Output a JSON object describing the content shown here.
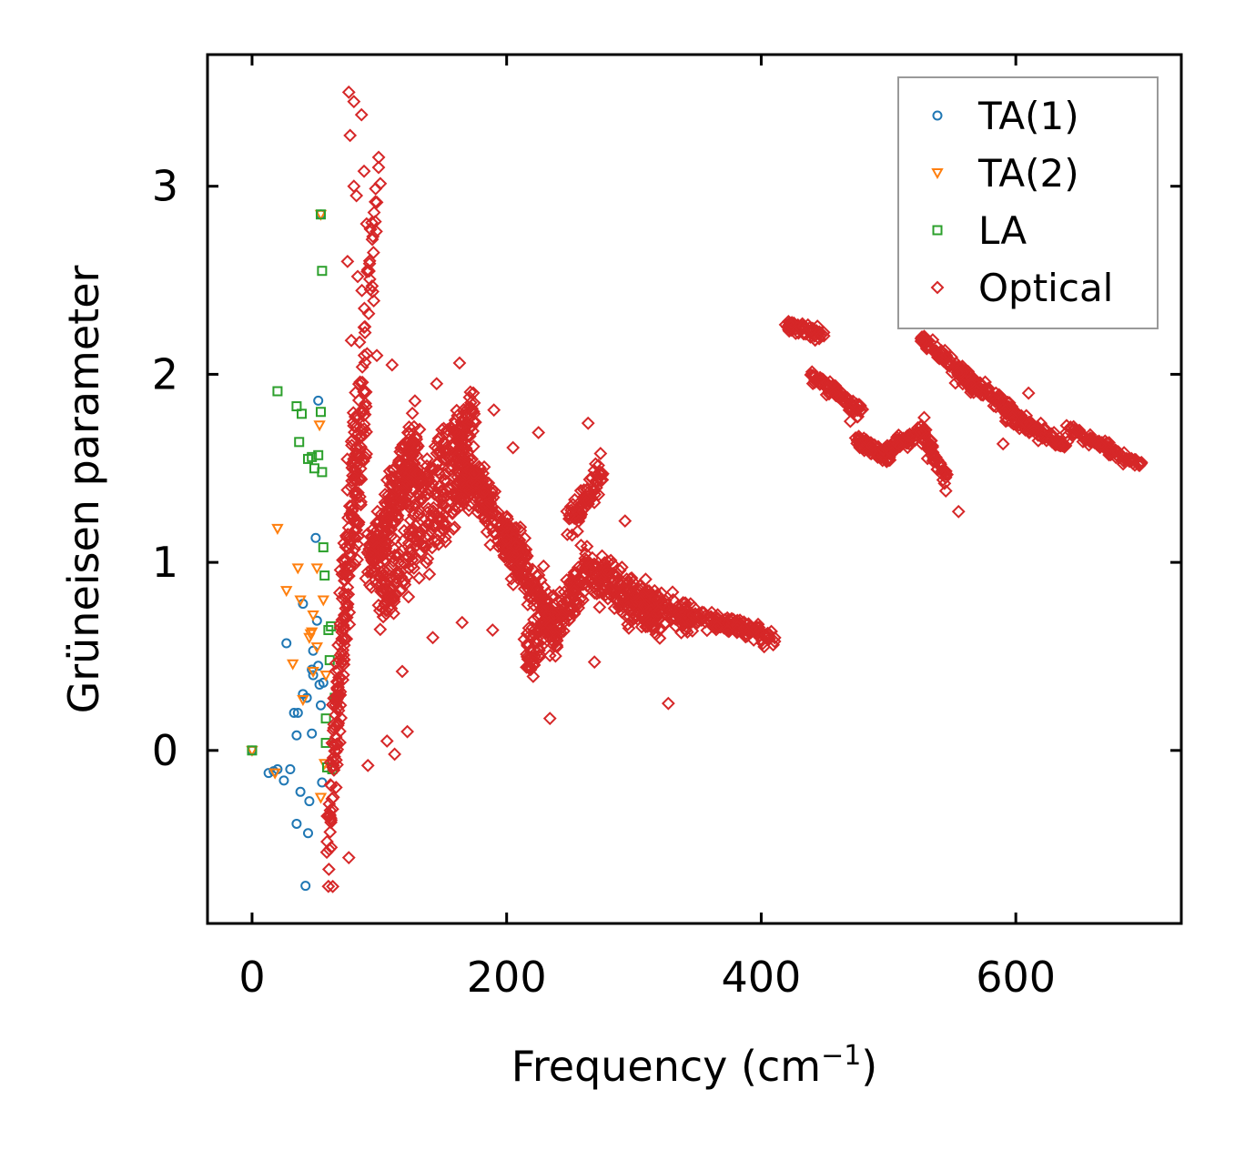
{
  "chart_data": {
    "type": "scatter",
    "xlabel": "Frequency (cm",
    "xlabel_sup": "−1",
    "xlabel_close": ")",
    "ylabel": "Grüneisen parameter",
    "xlim": [
      -35,
      730
    ],
    "ylim": [
      -0.92,
      3.7
    ],
    "xticks": [
      0,
      200,
      400,
      600
    ],
    "yticks": [
      0,
      1,
      2,
      3
    ],
    "legend_position": "top-right",
    "series": [
      {
        "name": "TA(1)",
        "marker": "circle",
        "color": "#1f77b4",
        "points": [
          [
            0,
            0
          ],
          [
            13,
            -0.12
          ],
          [
            17,
            -0.11
          ],
          [
            20,
            -0.1
          ],
          [
            25,
            -0.16
          ],
          [
            27,
            0.57
          ],
          [
            30,
            -0.1
          ],
          [
            33,
            0.2
          ],
          [
            35,
            0.08
          ],
          [
            35,
            -0.39
          ],
          [
            38,
            -0.22
          ],
          [
            40,
            0.3
          ],
          [
            40,
            0.78
          ],
          [
            42,
            -0.72
          ],
          [
            43,
            0.28
          ],
          [
            44,
            -0.44
          ],
          [
            45,
            -0.27
          ],
          [
            47,
            0.43
          ],
          [
            47,
            0.09
          ],
          [
            48,
            0.4
          ],
          [
            48,
            0.53
          ],
          [
            50,
            1.13
          ],
          [
            51,
            0.69
          ],
          [
            52,
            0.45
          ],
          [
            52,
            1.86
          ],
          [
            53,
            0.35
          ],
          [
            54,
            0.24
          ],
          [
            55,
            -0.17
          ],
          [
            56,
            0.36
          ],
          [
            54,
            2.85
          ],
          [
            36,
            0.2
          ]
        ]
      },
      {
        "name": "TA(2)",
        "marker": "triangle-down",
        "color": "#ff7f0e",
        "points": [
          [
            0,
            0
          ],
          [
            18,
            -0.12
          ],
          [
            20,
            1.18
          ],
          [
            27,
            0.85
          ],
          [
            32,
            0.46
          ],
          [
            36,
            0.97
          ],
          [
            38,
            0.8
          ],
          [
            40,
            0.27
          ],
          [
            45,
            0.6
          ],
          [
            46,
            0.62
          ],
          [
            47,
            0.63
          ],
          [
            48,
            0.72
          ],
          [
            48,
            0.42
          ],
          [
            51,
            0.97
          ],
          [
            51,
            0.55
          ],
          [
            53,
            1.73
          ],
          [
            54,
            -0.25
          ],
          [
            56,
            0.8
          ],
          [
            57,
            -0.07
          ],
          [
            58,
            0.4
          ],
          [
            54,
            2.85
          ]
        ]
      },
      {
        "name": "LA",
        "marker": "square",
        "color": "#2ca02c",
        "points": [
          [
            0,
            0
          ],
          [
            20,
            1.91
          ],
          [
            35,
            1.83
          ],
          [
            37,
            1.64
          ],
          [
            39,
            1.79
          ],
          [
            44,
            1.55
          ],
          [
            47,
            1.56
          ],
          [
            49,
            1.5
          ],
          [
            52,
            1.57
          ],
          [
            54,
            1.8
          ],
          [
            55,
            1.48
          ],
          [
            56,
            1.08
          ],
          [
            57,
            0.93
          ],
          [
            58,
            0.04
          ],
          [
            58,
            0.17
          ],
          [
            59,
            -0.09
          ],
          [
            60,
            0.64
          ],
          [
            61,
            0.48
          ],
          [
            62,
            0.66
          ],
          [
            63,
            -0.1
          ],
          [
            65,
            0.28
          ],
          [
            67,
            0.28
          ],
          [
            55,
            2.55
          ],
          [
            54,
            2.85
          ]
        ]
      },
      {
        "name": "Optical",
        "marker": "diamond",
        "color": "#d62728",
        "points": []
      }
    ],
    "optical_generator": {
      "note": "dense optical-mode cloud; trend segments of [x_start, y_start, x_end, y_end, spread, count] in data units",
      "segments": [
        [
          60,
          -0.55,
          75,
          1.0,
          0.35,
          90
        ],
        [
          65,
          0.1,
          90,
          1.9,
          0.35,
          120
        ],
        [
          72,
          1.0,
          100,
          3.1,
          0.4,
          80
        ],
        [
          90,
          1.0,
          130,
          1.6,
          0.3,
          260
        ],
        [
          100,
          0.8,
          170,
          1.5,
          0.3,
          220
        ],
        [
          130,
          1.4,
          175,
          1.8,
          0.2,
          120
        ],
        [
          160,
          1.6,
          210,
          1.0,
          0.22,
          200
        ],
        [
          200,
          1.2,
          240,
          0.6,
          0.2,
          160
        ],
        [
          215,
          0.5,
          260,
          0.9,
          0.2,
          150
        ],
        [
          250,
          1.2,
          275,
          1.5,
          0.15,
          80
        ],
        [
          260,
          1.0,
          320,
          0.7,
          0.2,
          220
        ],
        [
          300,
          0.8,
          345,
          0.7,
          0.12,
          110
        ],
        [
          345,
          0.72,
          410,
          0.6,
          0.07,
          130
        ],
        [
          420,
          2.27,
          450,
          2.2,
          0.05,
          60
        ],
        [
          440,
          2.0,
          480,
          1.8,
          0.06,
          80
        ],
        [
          475,
          1.65,
          500,
          1.55,
          0.06,
          60
        ],
        [
          495,
          1.6,
          530,
          1.7,
          0.05,
          70
        ],
        [
          525,
          1.7,
          545,
          1.45,
          0.08,
          50
        ],
        [
          525,
          2.2,
          560,
          2.0,
          0.06,
          70
        ],
        [
          555,
          2.0,
          600,
          1.8,
          0.07,
          110
        ],
        [
          590,
          1.8,
          640,
          1.62,
          0.06,
          110
        ],
        [
          640,
          1.72,
          700,
          1.5,
          0.04,
          90
        ]
      ],
      "outliers": [
        [
          76,
          3.5
        ],
        [
          80,
          3.45
        ],
        [
          86,
          3.38
        ],
        [
          77,
          3.27
        ],
        [
          88,
          3.08
        ],
        [
          80,
          3.0
        ],
        [
          82,
          2.95
        ],
        [
          90,
          2.8
        ],
        [
          75,
          2.6
        ],
        [
          83,
          2.52
        ],
        [
          93,
          2.45
        ],
        [
          88,
          2.25
        ],
        [
          78,
          2.18
        ],
        [
          98,
          2.1
        ],
        [
          110,
          2.05
        ],
        [
          145,
          1.95
        ],
        [
          163,
          2.06
        ],
        [
          190,
          1.81
        ],
        [
          205,
          1.61
        ],
        [
          225,
          1.69
        ],
        [
          264,
          1.74
        ],
        [
          229,
          0.98
        ],
        [
          293,
          1.22
        ],
        [
          327,
          0.25
        ],
        [
          234,
          0.17
        ],
        [
          269,
          0.47
        ],
        [
          189,
          0.64
        ],
        [
          165,
          0.68
        ],
        [
          142,
          0.6
        ],
        [
          106,
          0.05
        ],
        [
          112,
          -0.02
        ],
        [
          122,
          0.1
        ],
        [
          91,
          -0.08
        ],
        [
          76,
          -0.57
        ],
        [
          118,
          0.42
        ],
        [
          555,
          1.27
        ],
        [
          545,
          1.38
        ],
        [
          528,
          1.77
        ],
        [
          507,
          1.63
        ],
        [
          470,
          1.75
        ],
        [
          610,
          1.9
        ],
        [
          590,
          1.63
        ]
      ]
    },
    "legend": [
      "TA(1)",
      "TA(2)",
      "LA",
      "Optical"
    ]
  }
}
